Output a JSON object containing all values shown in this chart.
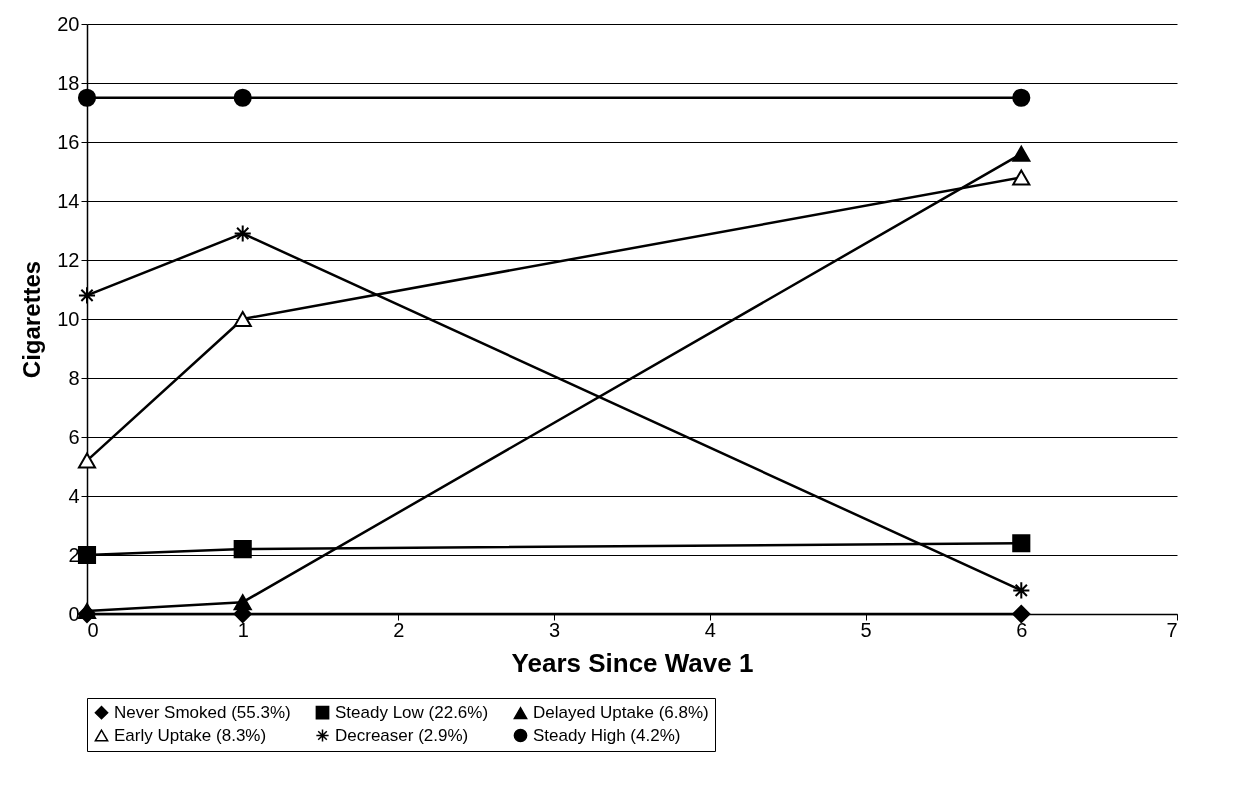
{
  "chart_data": {
    "type": "line",
    "xlabel": "Years Since Wave 1",
    "ylabel": "Cigarettes",
    "x": [
      0,
      1,
      6
    ],
    "series": [
      {
        "name": "Never Smoked (55.3%)",
        "color": "#000000",
        "marker": "diamond",
        "values": [
          0,
          0,
          0
        ]
      },
      {
        "name": "Steady Low (22.6%)",
        "color": "#000000",
        "marker": "square",
        "values": [
          2.0,
          2.2,
          2.4
        ]
      },
      {
        "name": "Delayed Uptake (6.8%)",
        "color": "#000000",
        "marker": "triangle",
        "values": [
          0.1,
          0.4,
          15.6
        ]
      },
      {
        "name": "Early Uptake (8.3%)",
        "color": "#000000",
        "marker": "triangle-open",
        "values": [
          5.2,
          10.0,
          14.8
        ]
      },
      {
        "name": "Decreaser (2.9%)",
        "color": "#000000",
        "marker": "cross",
        "values": [
          10.8,
          12.9,
          0.8
        ]
      },
      {
        "name": "Steady High (4.2%)",
        "color": "#000000",
        "marker": "circle",
        "values": [
          17.5,
          17.5,
          17.5
        ]
      }
    ],
    "xlim": [
      0,
      7
    ],
    "xticks": [
      0,
      1,
      2,
      3,
      4,
      5,
      6,
      7
    ],
    "ylim": [
      0,
      20
    ],
    "yticks": [
      0,
      2,
      4,
      6,
      8,
      10,
      12,
      14,
      16,
      18,
      20
    ],
    "grid": "y",
    "legend": "bottom",
    "line_style": "solid"
  }
}
